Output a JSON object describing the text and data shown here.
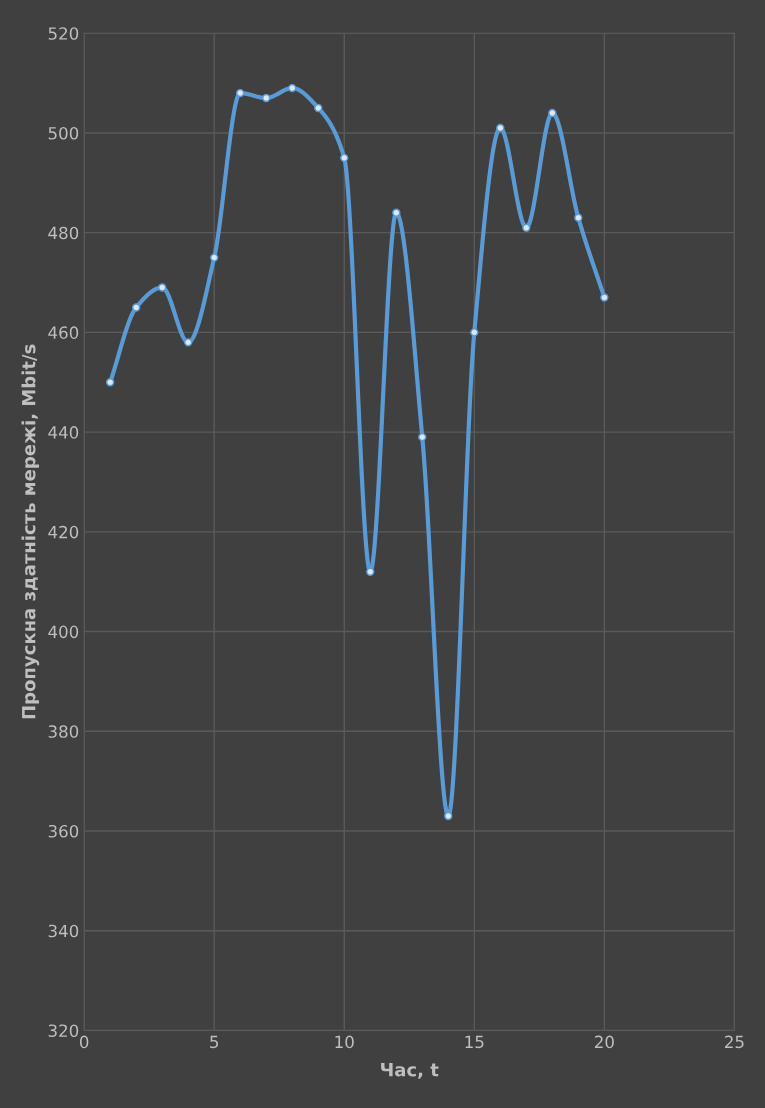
{
  "chart_data": {
    "type": "line",
    "xlabel": "Час, t",
    "ylabel": "Пропускна здатність мережі, Mbit/s",
    "x": [
      1,
      2,
      3,
      4,
      5,
      6,
      7,
      8,
      9,
      10,
      11,
      12,
      13,
      14,
      15,
      16,
      17,
      18,
      19,
      20
    ],
    "series": [
      {
        "color": "#5b9bd5",
        "values": [
          450,
          465,
          469,
          458,
          475,
          508,
          507,
          509,
          505,
          495,
          412,
          484,
          439,
          363,
          460,
          501,
          481,
          504,
          483,
          467
        ]
      }
    ],
    "xlim": [
      0,
      25
    ],
    "xticks": [
      0,
      5,
      10,
      15,
      20,
      25
    ],
    "ylim": [
      320,
      520
    ],
    "yticks": [
      320,
      340,
      360,
      380,
      400,
      420,
      440,
      460,
      480,
      500,
      520
    ],
    "grid": true,
    "marker": "circle",
    "line_style": "solid",
    "legend": false
  }
}
